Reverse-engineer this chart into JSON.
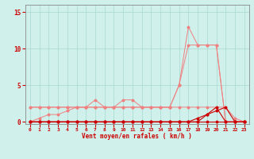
{
  "x": [
    0,
    1,
    2,
    3,
    4,
    5,
    6,
    7,
    8,
    9,
    10,
    11,
    12,
    13,
    14,
    15,
    16,
    17,
    18,
    19,
    20,
    21,
    22,
    23
  ],
  "line_light1": [
    2,
    2,
    2,
    2,
    2,
    2,
    2,
    3,
    2,
    2,
    3,
    3,
    2,
    2,
    2,
    2,
    5,
    13,
    10.5,
    10.5,
    10.5,
    0,
    0,
    0
  ],
  "line_light2": [
    2,
    2,
    2,
    2,
    2,
    2,
    2,
    2,
    2,
    2,
    2,
    2,
    2,
    2,
    2,
    2,
    5,
    10.5,
    10.5,
    10.5,
    10.5,
    0,
    0,
    0
  ],
  "line_light3": [
    0,
    0.5,
    1,
    1,
    1.5,
    2,
    2,
    2,
    2,
    2,
    2,
    2,
    2,
    2,
    2,
    2,
    2,
    2,
    2,
    2,
    2,
    2,
    0.5,
    0
  ],
  "line_dark1": [
    0,
    0,
    0,
    0,
    0,
    0,
    0,
    0,
    0,
    0,
    0,
    0,
    0,
    0,
    0,
    0,
    0,
    0,
    0,
    1,
    2,
    0,
    0,
    0
  ],
  "line_dark2": [
    0,
    0,
    0,
    0,
    0,
    0,
    0,
    0,
    0,
    0,
    0,
    0,
    0,
    0,
    0,
    0,
    0,
    0,
    0.5,
    1,
    1.5,
    2,
    0,
    0
  ],
  "line_dark3": [
    0,
    0,
    0,
    0,
    0,
    0,
    0,
    0,
    0,
    0,
    0,
    0,
    0,
    0,
    0,
    0,
    0,
    0,
    0,
    0,
    0,
    0,
    0,
    0
  ],
  "color_light": "#f08080",
  "color_dark": "#cc0000",
  "bg_color": "#d0f0ec",
  "grid_color": "#a8d8d0",
  "xlabel": "Vent moyen/en rafales ( km/h )",
  "yticks": [
    0,
    5,
    10,
    15
  ],
  "xticks": [
    0,
    1,
    2,
    3,
    4,
    5,
    6,
    7,
    8,
    9,
    10,
    11,
    12,
    13,
    14,
    15,
    16,
    17,
    18,
    19,
    20,
    21,
    22,
    23
  ],
  "ylim": [
    -0.3,
    16
  ],
  "xlim": [
    -0.5,
    23.5
  ]
}
